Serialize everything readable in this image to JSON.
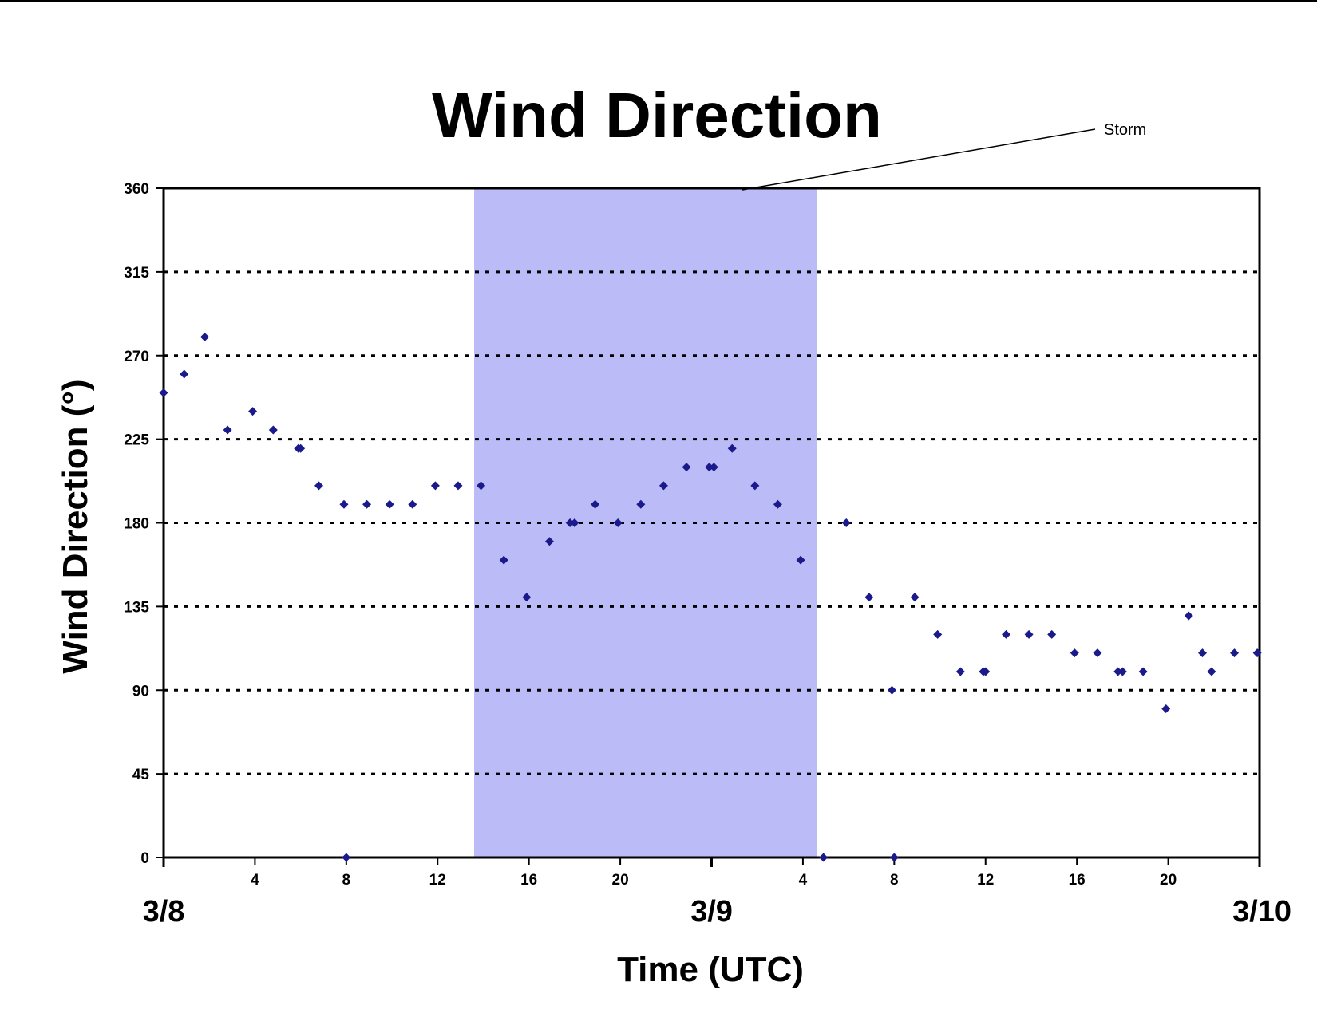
{
  "chart_data": {
    "type": "scatter",
    "title": "Wind Direction",
    "xlabel": "Time (UTC)",
    "ylabel": "Wind Direction (°)",
    "x_unit": "hours",
    "xlim": [
      0,
      48
    ],
    "ylim": [
      0,
      360
    ],
    "y_ticks": [
      0,
      45,
      90,
      135,
      180,
      225,
      270,
      315,
      360
    ],
    "x_hour_ticks": [
      {
        "x": 4,
        "label": "4"
      },
      {
        "x": 8,
        "label": "8"
      },
      {
        "x": 12,
        "label": "12"
      },
      {
        "x": 16,
        "label": "16"
      },
      {
        "x": 20,
        "label": "20"
      },
      {
        "x": 28,
        "label": "4"
      },
      {
        "x": 32,
        "label": "8"
      },
      {
        "x": 36,
        "label": "12"
      },
      {
        "x": 40,
        "label": "16"
      },
      {
        "x": 44,
        "label": "20"
      }
    ],
    "x_day_labels": [
      {
        "x": 0,
        "label": "3/8"
      },
      {
        "x": 24,
        "label": "3/9"
      },
      {
        "x": 48,
        "label": "3/10"
      }
    ],
    "grid": {
      "horizontal": true,
      "style": "dotted"
    },
    "shaded_region": {
      "x_start": 13.6,
      "x_end": 28.6,
      "color": "#bbbbf7",
      "label": "Storm"
    },
    "marker_color": "#1a1a8c",
    "series": [
      {
        "name": "",
        "points": [
          [
            0,
            250
          ],
          [
            0.9,
            260
          ],
          [
            1.8,
            280
          ],
          [
            2.8,
            230
          ],
          [
            3.9,
            240
          ],
          [
            4.8,
            230
          ],
          [
            5.9,
            220
          ],
          [
            6.0,
            220
          ],
          [
            6.8,
            200
          ],
          [
            7.9,
            190
          ],
          [
            8.0,
            0
          ],
          [
            8.9,
            190
          ],
          [
            9.9,
            190
          ],
          [
            10.9,
            190
          ],
          [
            11.9,
            200
          ],
          [
            12.9,
            200
          ],
          [
            13.9,
            200
          ],
          [
            14.9,
            160
          ],
          [
            15.9,
            140
          ],
          [
            16.9,
            170
          ],
          [
            17.8,
            180
          ],
          [
            18.0,
            180
          ],
          [
            18.9,
            190
          ],
          [
            19.9,
            180
          ],
          [
            20.9,
            190
          ],
          [
            21.9,
            200
          ],
          [
            22.9,
            210
          ],
          [
            23.9,
            210
          ],
          [
            24.1,
            210
          ],
          [
            24.9,
            220
          ],
          [
            25.9,
            200
          ],
          [
            26.9,
            190
          ],
          [
            27.9,
            160
          ],
          [
            28.9,
            0
          ],
          [
            29.9,
            180
          ],
          [
            30.9,
            140
          ],
          [
            31.9,
            90
          ],
          [
            32.0,
            0
          ],
          [
            32.9,
            140
          ],
          [
            33.9,
            120
          ],
          [
            34.9,
            100
          ],
          [
            35.9,
            100
          ],
          [
            36.0,
            100
          ],
          [
            36.9,
            120
          ],
          [
            37.9,
            120
          ],
          [
            38.9,
            120
          ],
          [
            39.9,
            110
          ],
          [
            40.9,
            110
          ],
          [
            41.8,
            100
          ],
          [
            42.0,
            100
          ],
          [
            42.9,
            100
          ],
          [
            43.9,
            80
          ],
          [
            44.9,
            130
          ],
          [
            45.5,
            110
          ],
          [
            45.9,
            100
          ],
          [
            46.9,
            110
          ],
          [
            47.9,
            110
          ]
        ]
      }
    ]
  }
}
